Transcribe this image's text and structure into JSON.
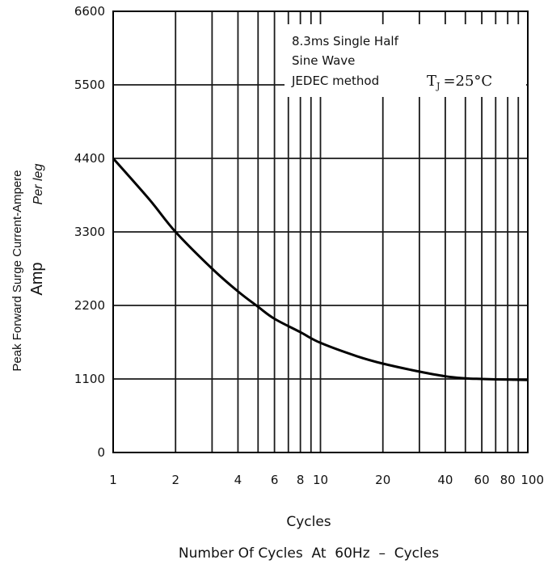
{
  "chart_data": {
    "type": "line",
    "x_scale": "log",
    "xlim": [
      1,
      100
    ],
    "ylim": [
      0,
      6600
    ],
    "x_ticks": [
      1,
      2,
      4,
      6,
      8,
      10,
      20,
      40,
      60,
      80,
      100
    ],
    "x_tick_labels": [
      "1",
      "2",
      "4",
      "6",
      "8",
      "10",
      "20",
      "40",
      "60",
      "80",
      "100"
    ],
    "y_ticks": [
      0,
      1100,
      2200,
      3300,
      4400,
      5500,
      6600
    ],
    "y_tick_labels": [
      "0",
      "1100",
      "2200",
      "3300",
      "4400",
      "5500",
      "6600"
    ],
    "grid": true,
    "xlabel": "Cycles",
    "xlabel_sub": "Number Of Cycles  At  60Hz  –  Cycles",
    "ylabel_lines": [
      "Peak Forward Surge Current-Ampere",
      "Per leg",
      "Amp"
    ],
    "annotation": {
      "lines": [
        "8.3ms Single Half",
        "Sine Wave",
        "JEDEC method"
      ],
      "condition_symbol": "T",
      "condition_subscript": "J",
      "condition_value": "=25°C"
    },
    "series": [
      {
        "x": [
          1,
          1.5,
          2,
          3,
          4,
          5,
          6,
          8,
          10,
          15,
          20,
          30,
          40,
          50,
          60,
          80,
          100
        ],
        "y": [
          4400,
          3780,
          3300,
          2750,
          2410,
          2180,
          2000,
          1800,
          1640,
          1440,
          1330,
          1210,
          1140,
          1110,
          1100,
          1090,
          1085
        ]
      }
    ]
  }
}
